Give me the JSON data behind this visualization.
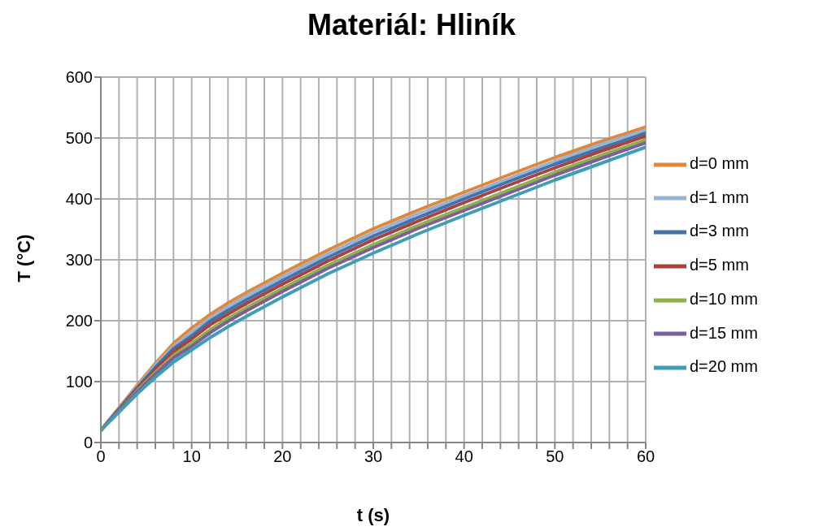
{
  "chart_data": {
    "type": "line",
    "title": "Materiál: Hliník",
    "xlabel": "t (s)",
    "ylabel": "T (°C)",
    "x": [
      0,
      2,
      4,
      6,
      8,
      10,
      12,
      14,
      16,
      18,
      20,
      25,
      30,
      35,
      40,
      45,
      50,
      55,
      60
    ],
    "series": [
      {
        "name": "d=0 mm",
        "color": "#e0873a",
        "values": [
          20,
          57,
          94,
          130,
          163,
          188,
          210,
          229,
          246,
          262,
          278,
          316,
          351,
          382,
          411,
          440,
          468,
          494,
          518
        ]
      },
      {
        "name": "d=1 mm",
        "color": "#95b3d7",
        "values": [
          20,
          56,
          92,
          127,
          158,
          181,
          204,
          223,
          240,
          256,
          272,
          310,
          345,
          376,
          405,
          434,
          462,
          489,
          513
        ]
      },
      {
        "name": "d=3 mm",
        "color": "#4472a8",
        "values": [
          20,
          55,
          90,
          123,
          154,
          175,
          199,
          217,
          234,
          250,
          266,
          304,
          339,
          370,
          400,
          429,
          457,
          483,
          508
        ]
      },
      {
        "name": "d=5 mm",
        "color": "#a8423f",
        "values": [
          20,
          54,
          88,
          120,
          149,
          170,
          193,
          211,
          228,
          244,
          260,
          298,
          333,
          364,
          394,
          423,
          451,
          478,
          503
        ]
      },
      {
        "name": "d=10 mm",
        "color": "#8fb04a",
        "values": [
          20,
          52,
          85,
          115,
          143,
          163,
          185,
          204,
          221,
          237,
          253,
          291,
          325,
          357,
          386,
          415,
          444,
          471,
          497
        ]
      },
      {
        "name": "d=15 mm",
        "color": "#7a5f9c",
        "values": [
          20,
          52,
          83,
          112,
          139,
          158,
          180,
          199,
          216,
          232,
          248,
          286,
          320,
          352,
          381,
          410,
          439,
          466,
          492
        ]
      },
      {
        "name": "d=20 mm",
        "color": "#3e9eb5",
        "values": [
          20,
          50,
          80,
          107,
          132,
          152,
          172,
          190,
          207,
          223,
          239,
          277,
          311,
          343,
          373,
          402,
          431,
          458,
          485
        ]
      }
    ],
    "xlim": [
      0,
      60
    ],
    "xticks": [
      0,
      {
        "value": 2,
        "label": null
      },
      {
        "value": 4,
        "label": null
      },
      {
        "value": 6,
        "label": null
      },
      {
        "value": 8,
        "label": null
      },
      10,
      {
        "value": 12,
        "label": null
      },
      {
        "value": 14,
        "label": null
      },
      {
        "value": 16,
        "label": null
      },
      {
        "value": 18,
        "label": null
      },
      20,
      {
        "value": 22,
        "label": null
      },
      {
        "value": 24,
        "label": null
      },
      {
        "value": 26,
        "label": null
      },
      {
        "value": 28,
        "label": null
      },
      30,
      {
        "value": 32,
        "label": null
      },
      {
        "value": 34,
        "label": null
      },
      {
        "value": 36,
        "label": null
      },
      {
        "value": 38,
        "label": null
      },
      40,
      {
        "value": 42,
        "label": null
      },
      {
        "value": 44,
        "label": null
      },
      {
        "value": 46,
        "label": null
      },
      {
        "value": 48,
        "label": null
      },
      50,
      {
        "value": 52,
        "label": null
      },
      {
        "value": 54,
        "label": null
      },
      {
        "value": 56,
        "label": null
      },
      {
        "value": 58,
        "label": null
      },
      60
    ],
    "ylim": [
      0,
      600
    ],
    "yticks": [
      0,
      100,
      200,
      300,
      400,
      500,
      600
    ],
    "grid": true,
    "legend": "right",
    "marker": "none",
    "line_style": "solid"
  }
}
